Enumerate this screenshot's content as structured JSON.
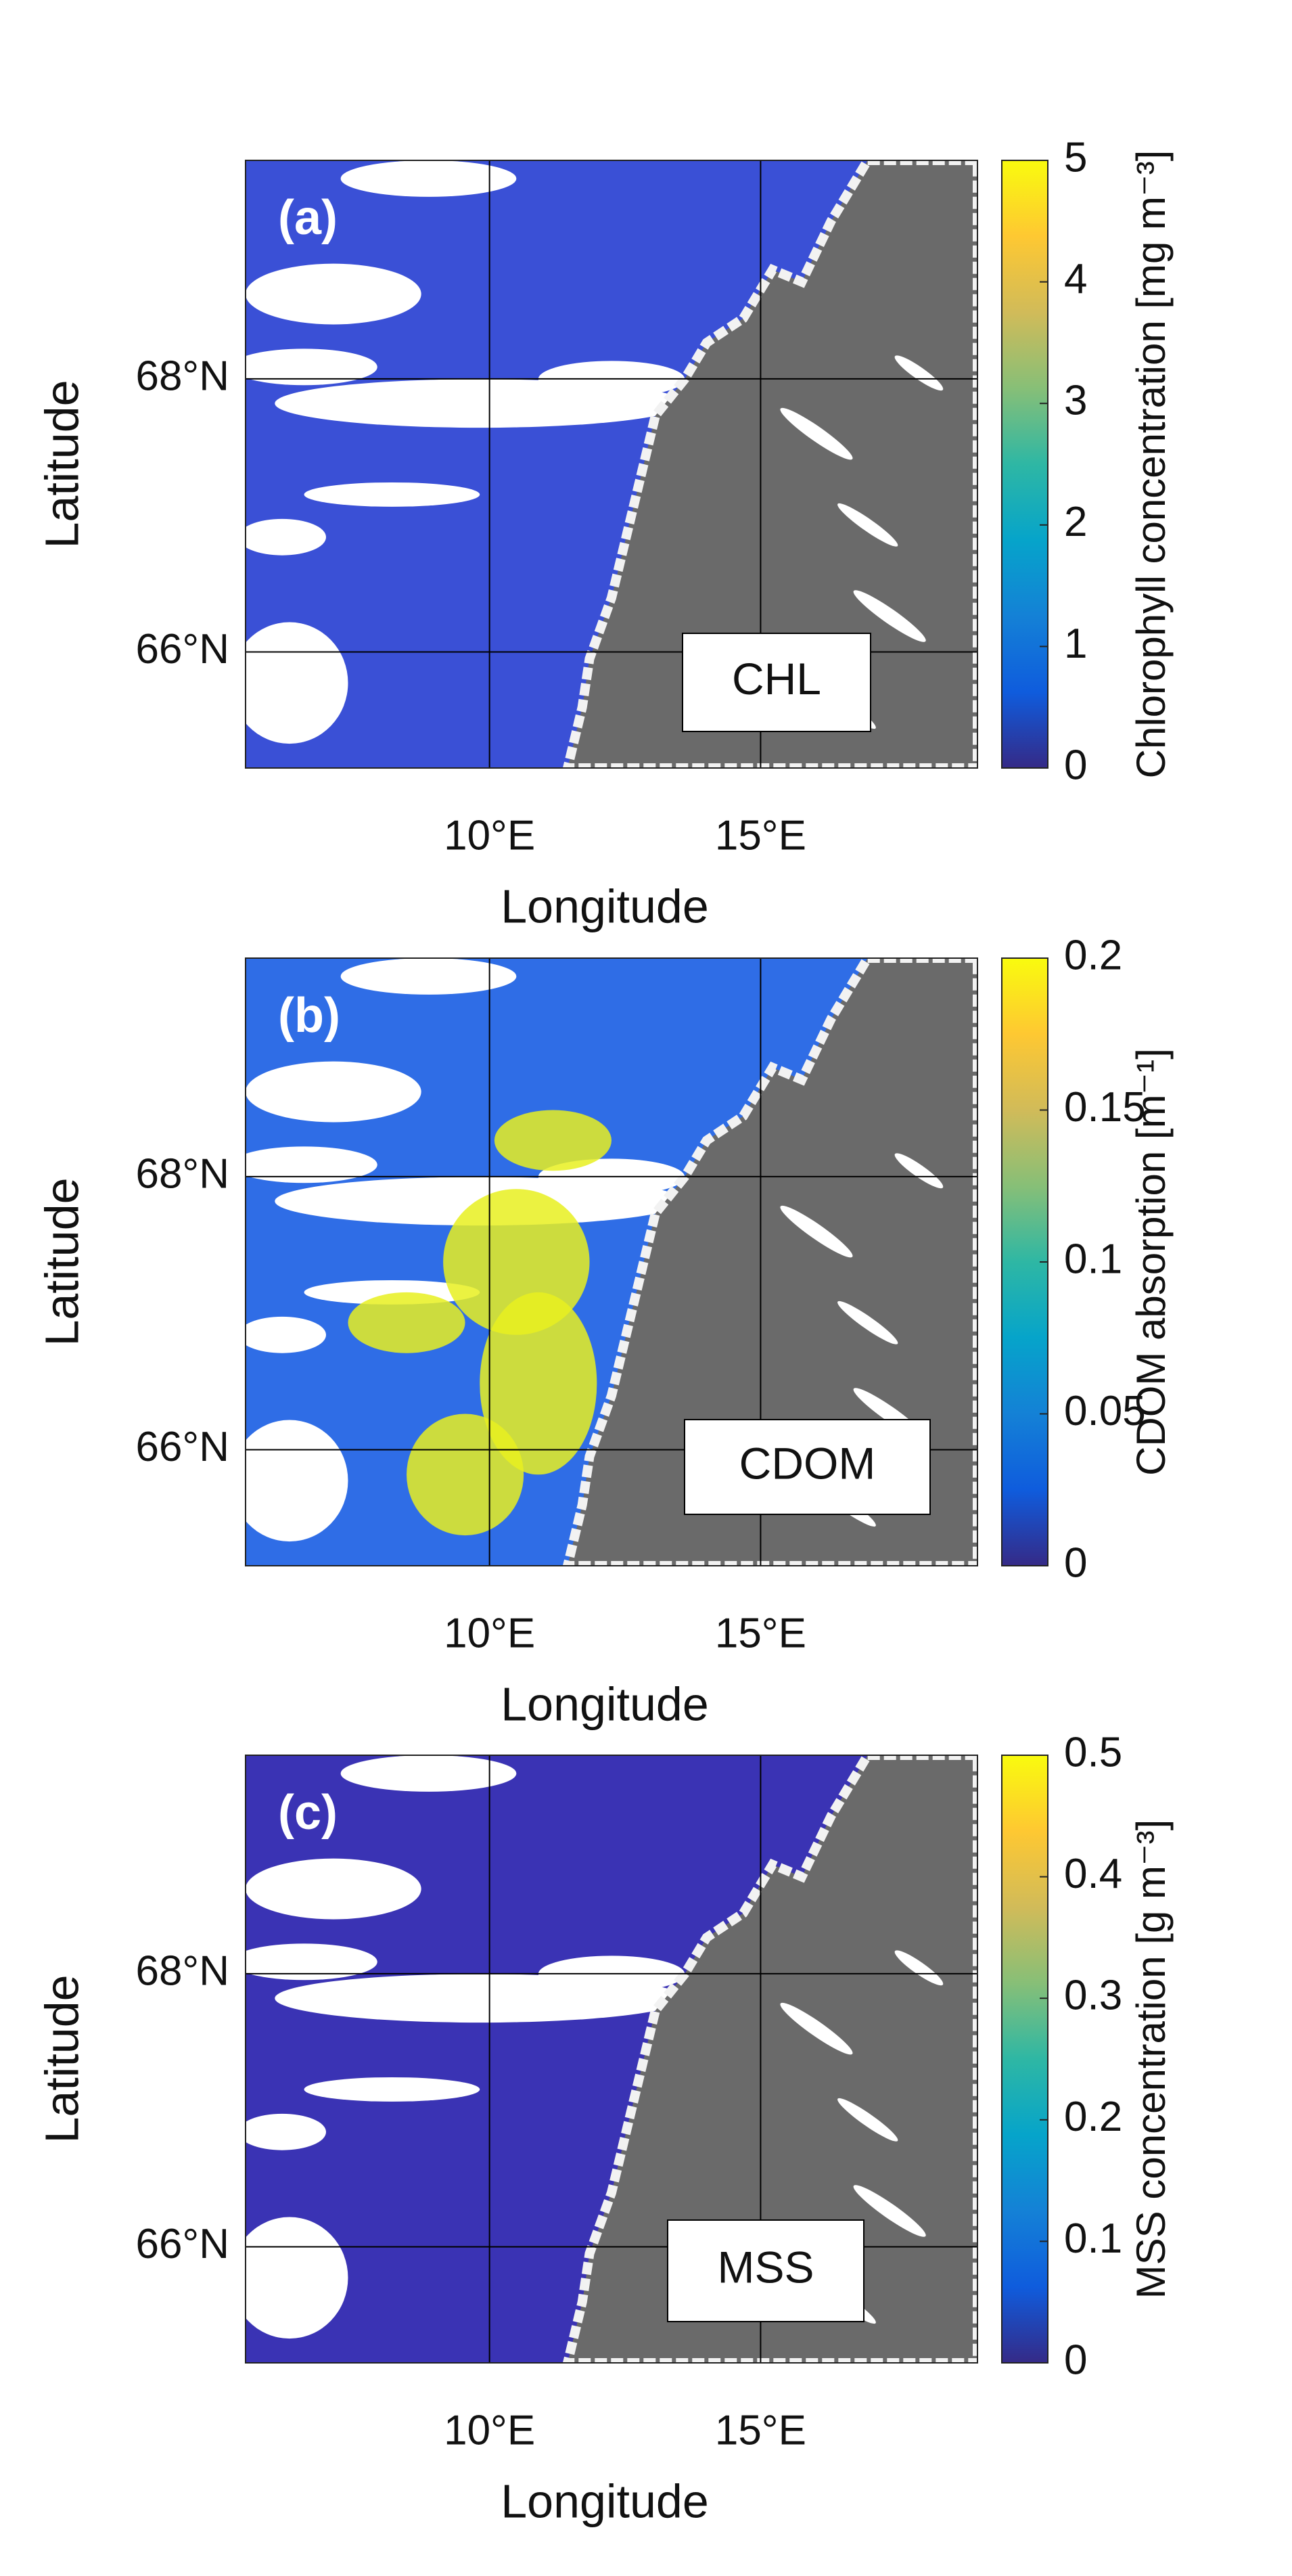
{
  "chart_data": [
    {
      "type": "map",
      "panel_label": "(a)",
      "variable": "CHL",
      "xlabel": "Longitude",
      "ylabel": "Latitude",
      "xlim": [
        5.5,
        19
      ],
      "ylim": [
        65.15,
        69.6
      ],
      "xticks": [
        {
          "value": 10,
          "label": "10°E"
        },
        {
          "value": 15,
          "label": "15°E"
        }
      ],
      "yticks": [
        {
          "value": 66,
          "label": "66°N"
        },
        {
          "value": 68,
          "label": "68°N"
        }
      ],
      "grid": true,
      "colorbar": {
        "label": "Chlorophyll concentration [mg m⁻³]",
        "clim": [
          0,
          5
        ],
        "ticks": [
          0,
          1,
          2,
          3,
          4,
          5
        ],
        "colormap": "parula"
      }
    },
    {
      "type": "map",
      "panel_label": "(b)",
      "variable": "CDOM",
      "xlabel": "Longitude",
      "ylabel": "Latitude",
      "xlim": [
        5.5,
        19
      ],
      "ylim": [
        65.15,
        69.6
      ],
      "xticks": [
        {
          "value": 10,
          "label": "10°E"
        },
        {
          "value": 15,
          "label": "15°E"
        }
      ],
      "yticks": [
        {
          "value": 66,
          "label": "66°N"
        },
        {
          "value": 68,
          "label": "68°N"
        }
      ],
      "grid": true,
      "colorbar": {
        "label": "CDOM absorption [m⁻¹]",
        "clim": [
          0,
          0.2
        ],
        "ticks": [
          0,
          0.05,
          0.1,
          0.15,
          0.2
        ],
        "colormap": "parula"
      }
    },
    {
      "type": "map",
      "panel_label": "(c)",
      "variable": "MSS",
      "xlabel": "Longitude",
      "ylabel": "Latitude",
      "xlim": [
        5.5,
        19
      ],
      "ylim": [
        65.15,
        69.6
      ],
      "xticks": [
        {
          "value": 10,
          "label": "10°E"
        },
        {
          "value": 15,
          "label": "15°E"
        }
      ],
      "yticks": [
        {
          "value": 66,
          "label": "66°N"
        },
        {
          "value": 68,
          "label": "68°N"
        }
      ],
      "grid": true,
      "colorbar": {
        "label": "MSS concentration [g m⁻³]",
        "clim": [
          0,
          0.5
        ],
        "ticks": [
          0,
          0.1,
          0.2,
          0.3,
          0.4,
          0.5
        ],
        "colormap": "parula"
      }
    }
  ]
}
